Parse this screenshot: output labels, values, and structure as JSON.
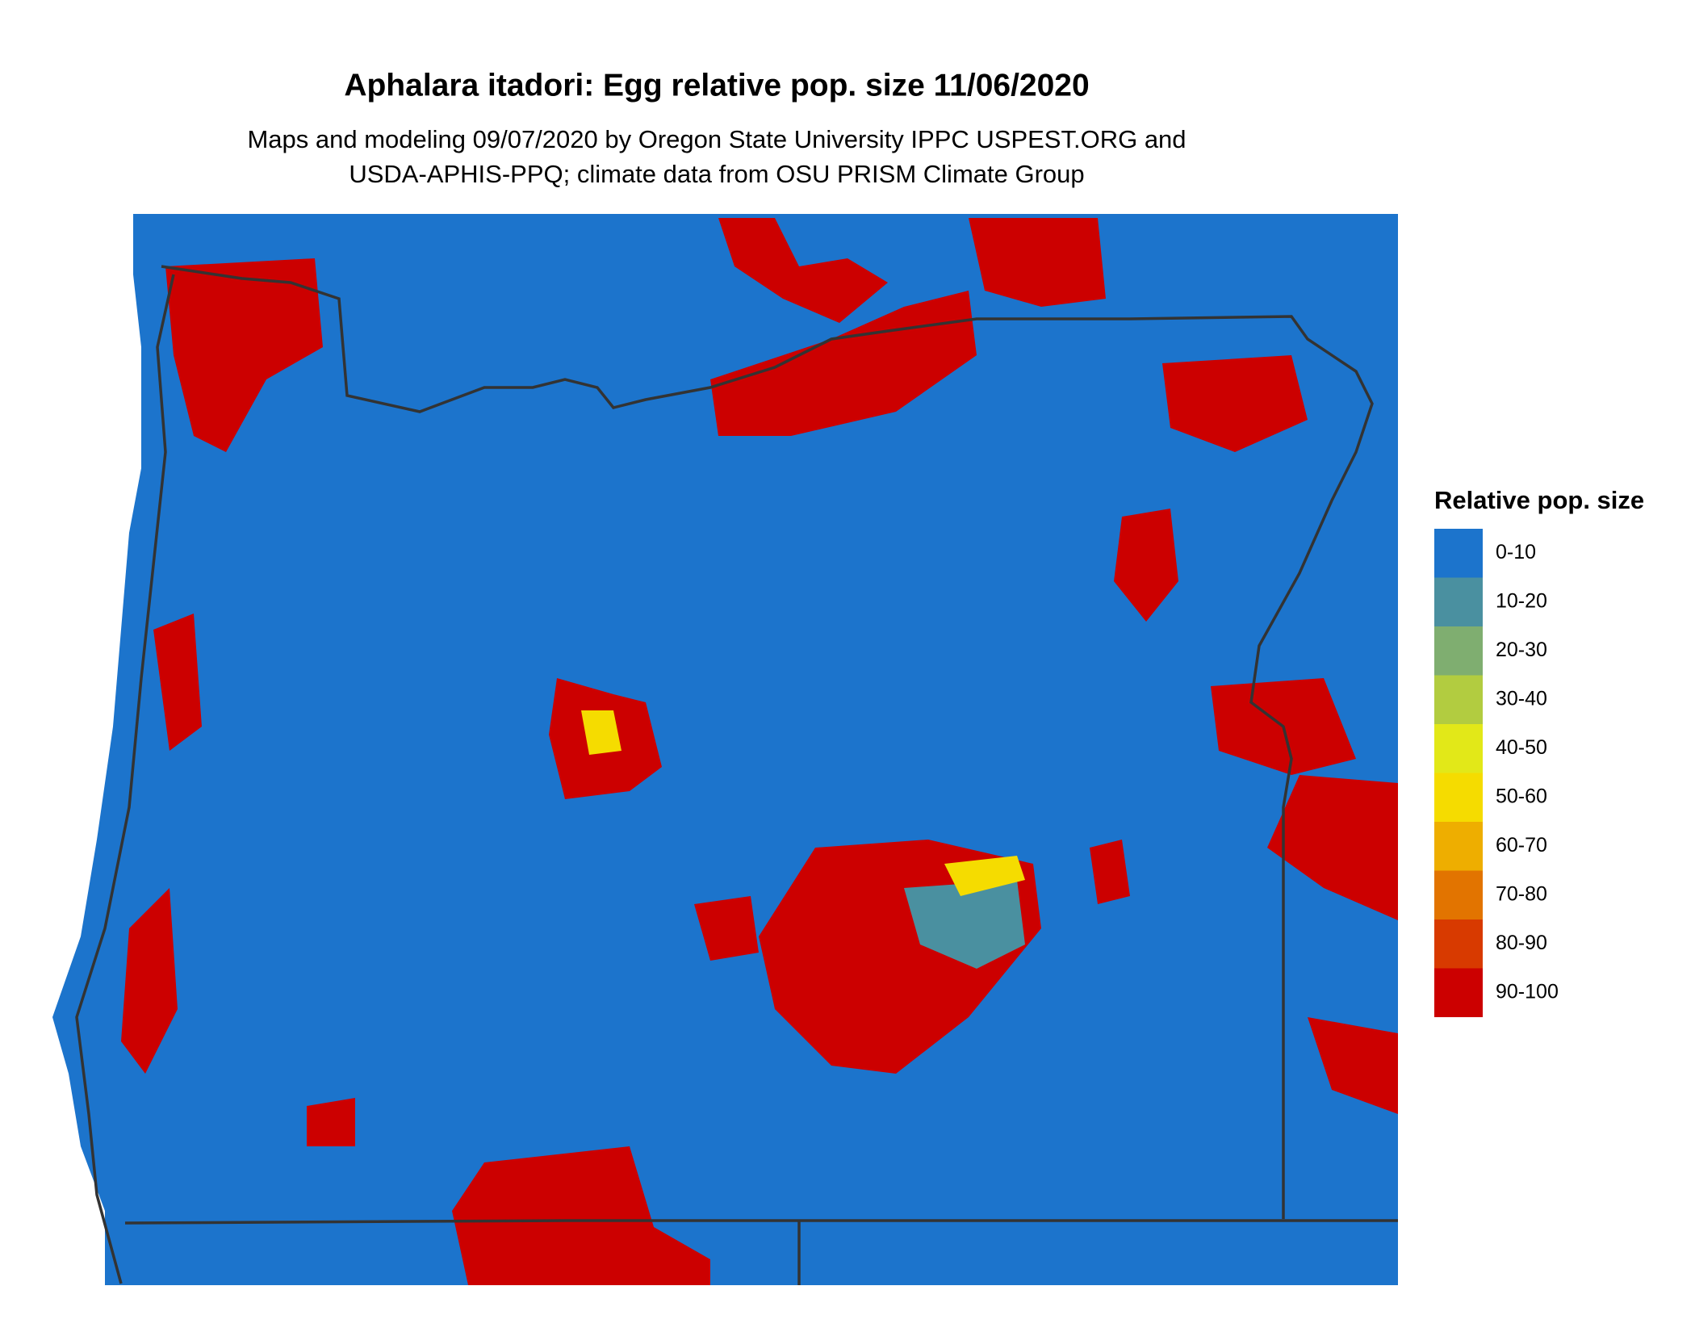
{
  "title": "Aphalara itadori: Egg relative pop. size 11/06/2020",
  "subtitle": [
    "Maps and modeling 09/07/2020 by Oregon State University IPPC USPEST.ORG and",
    "USDA-APHIS-PPQ; climate data from OSU PRISM Climate Group"
  ],
  "legend": {
    "title": "Relative pop. size",
    "items": [
      {
        "label": "0-10",
        "color": "#1c74cc"
      },
      {
        "label": "10-20",
        "color": "#4a90a0"
      },
      {
        "label": "20-30",
        "color": "#7fae70"
      },
      {
        "label": "30-40",
        "color": "#b2cc40"
      },
      {
        "label": "40-50",
        "color": "#e2e818"
      },
      {
        "label": "50-60",
        "color": "#f5dc00"
      },
      {
        "label": "60-70",
        "color": "#eeae00"
      },
      {
        "label": "70-80",
        "color": "#e27400"
      },
      {
        "label": "80-90",
        "color": "#d83a00"
      },
      {
        "label": "90-100",
        "color": "#cc0000"
      }
    ]
  }
}
